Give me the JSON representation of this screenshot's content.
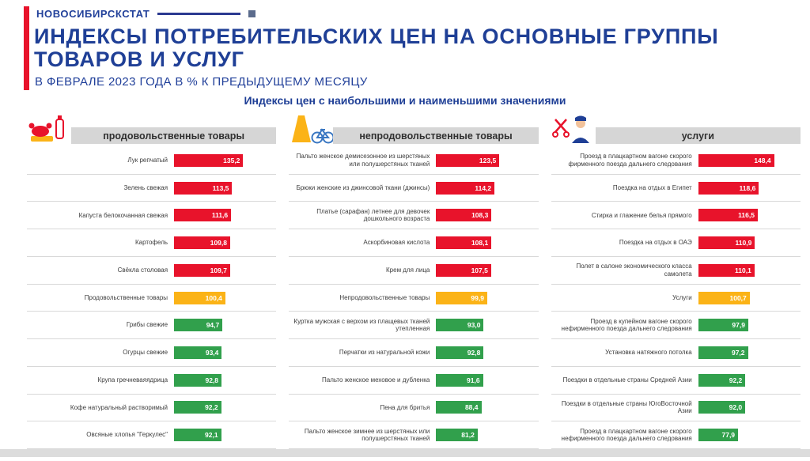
{
  "brand": {
    "name": "НОВОСИБИРСКСТАТ"
  },
  "header": {
    "title_line1": "ИНДЕКСЫ ПОТРЕБИТЕЛЬСКИХ ЦЕН НА ОСНОВНЫЕ ГРУППЫ",
    "title_line2": "ТОВАРОВ И УСЛУГ",
    "subtitle": "В ФЕВРАЛЕ 2023 ГОДА В % К ПРЕДЫДУЩЕМУ МЕСЯЦУ",
    "section_heading": "Индексы цен с наибольшими и наименьшими значениями"
  },
  "colors": {
    "red": "#e8132b",
    "yellow": "#fbb317",
    "green": "#31a04c",
    "blue": "#1f3f96"
  },
  "chart_data": [
    {
      "type": "bar",
      "orientation": "horizontal",
      "title": "продовольственные товары",
      "icon": "food-products-icon",
      "xlim": [
        0,
        200
      ],
      "categories": [
        "Лук репчатый",
        "Зелень свежая",
        "Капуста белокочанная свежая",
        "Картофель",
        "Свёкла столовая",
        "Продовольственные товары",
        "Грибы свежие",
        "Огурцы свежие",
        "Крупа гречневаяядрица",
        "Кофе натуральный растворимый",
        "Овсяные хлопья \"Геркулес\""
      ],
      "values": [
        135.2,
        113.5,
        111.6,
        109.8,
        109.7,
        100.4,
        94.7,
        93.4,
        92.8,
        92.2,
        92.1
      ],
      "display_values": [
        "135,2",
        "113,5",
        "111,6",
        "109,8",
        "109,7",
        "100,4",
        "94,7",
        "93,4",
        "92,8",
        "92,2",
        "92,1"
      ],
      "bar_colors": [
        "red",
        "red",
        "red",
        "red",
        "red",
        "yellow",
        "green",
        "green",
        "green",
        "green",
        "green"
      ]
    },
    {
      "type": "bar",
      "orientation": "horizontal",
      "title": "непродовольственные товары",
      "icon": "nonfood-products-icon",
      "xlim": [
        0,
        200
      ],
      "categories": [
        "Пальто женское демисезонное из шерстяных или полушерстяных тканей",
        "Брюки женские из джинсовой ткани (джинсы)",
        "Платье (сарафан) летнее для девочек дошкольного возраста",
        "Аскорбиновая кислота",
        "Крем для лица",
        "Непродовольственные товары",
        "Куртка мужская с верхом из плащевых тканей утепленная",
        "Перчатки из натуральной кожи",
        "Пальто женское меховое и дубленка",
        "Пена для бритья",
        "Пальто женское зимнее из шерстяных или полушерстяных тканей"
      ],
      "values": [
        123.5,
        114.2,
        108.3,
        108.1,
        107.5,
        99.9,
        93.0,
        92.8,
        91.6,
        88.4,
        81.2
      ],
      "display_values": [
        "123,5",
        "114,2",
        "108,3",
        "108,1",
        "107,5",
        "99,9",
        "93,0",
        "92,8",
        "91,6",
        "88,4",
        "81,2"
      ],
      "bar_colors": [
        "red",
        "red",
        "red",
        "red",
        "red",
        "yellow",
        "green",
        "green",
        "green",
        "green",
        "green"
      ]
    },
    {
      "type": "bar",
      "orientation": "horizontal",
      "title": "услуги",
      "icon": "services-icon",
      "xlim": [
        0,
        200
      ],
      "categories": [
        "Проезд в плацкартном вагоне скорого фирменного поезда дальнего следования",
        "Поездка на отдых в Египет",
        "Стирка и глажение белья прямого",
        "Поездка на отдых в ОАЭ",
        "Полет в салоне экономического класса самолета",
        "Услуги",
        "Проезд в купейном вагоне скорого нефирменного поезда дальнего следования",
        "Установка натяжного потолка",
        "Поездки в отдельные страны Средней Азии",
        "Поездки в отдельные страны ЮгоВосточной Азии",
        "Проезд в плацкартном вагоне скорого нефирменного поезда дальнего следования"
      ],
      "values": [
        148.4,
        118.6,
        116.5,
        110.9,
        110.1,
        100.7,
        97.9,
        97.2,
        92.2,
        92.0,
        77.9
      ],
      "display_values": [
        "148,4",
        "118,6",
        "116,5",
        "110,9",
        "110,1",
        "100,7",
        "97,9",
        "97,2",
        "92,2",
        "92,0",
        "77,9"
      ],
      "bar_colors": [
        "red",
        "red",
        "red",
        "red",
        "red",
        "yellow",
        "green",
        "green",
        "green",
        "green",
        "green"
      ]
    }
  ]
}
